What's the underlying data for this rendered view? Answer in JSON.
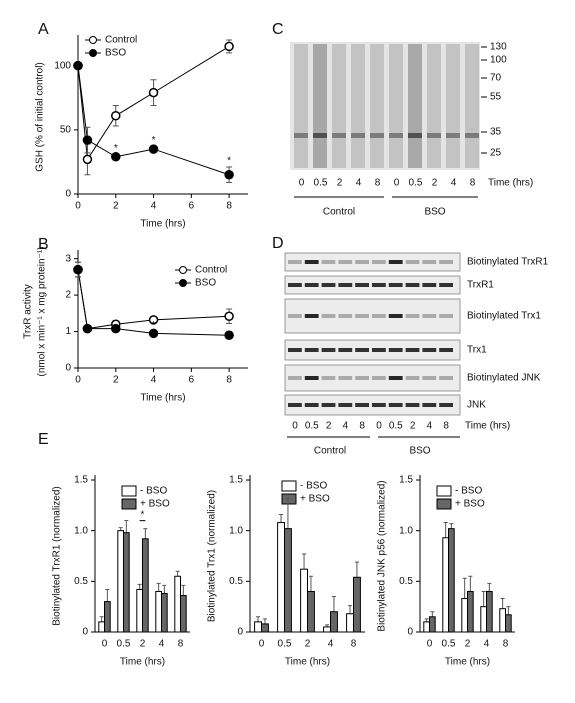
{
  "chart_data": [
    {
      "type": "line",
      "label": "A",
      "y_label": "GSH (% of initial control)",
      "x_label": "Time (hrs)",
      "x": [
        0,
        0.5,
        2,
        4,
        8
      ],
      "xlim": [
        0,
        9
      ],
      "xticks": [
        0,
        2,
        4,
        6,
        8
      ],
      "ylim": [
        0,
        120
      ],
      "yticks": [
        0,
        50,
        100
      ],
      "series": [
        {
          "name": "Control",
          "color": "#000000",
          "marker": "open",
          "values": [
            100,
            27,
            61,
            79,
            115
          ],
          "errors": [
            0,
            12,
            8,
            10,
            5
          ]
        },
        {
          "name": "BSO",
          "color": "#000000",
          "marker": "filled",
          "values": [
            100,
            42,
            29,
            35,
            15
          ],
          "errors": [
            0,
            10,
            2,
            2,
            6
          ],
          "significance": [
            null,
            null,
            "*",
            "*",
            "*"
          ]
        }
      ]
    },
    {
      "type": "line",
      "label": "B",
      "y_label": "TrxR activity",
      "y_label_2": "(nmol x min⁻¹ x mg protein⁻¹)",
      "x_label": "Time  (hrs)",
      "x": [
        0,
        0.5,
        2,
        4,
        8
      ],
      "xlim": [
        0,
        9
      ],
      "xticks": [
        0,
        2,
        4,
        6,
        8
      ],
      "ylim": [
        0,
        3.1
      ],
      "yticks": [
        0,
        1,
        2,
        3
      ],
      "series": [
        {
          "name": "Control",
          "color": "#000000",
          "marker": "open",
          "values": [
            2.7,
            1.08,
            1.2,
            1.32,
            1.42
          ],
          "errors": [
            0.2,
            0.05,
            0.1,
            0.05,
            0.2
          ]
        },
        {
          "name": "BSO",
          "color": "#000000",
          "marker": "filled",
          "values": [
            2.7,
            1.08,
            1.08,
            0.95,
            0.9
          ],
          "errors": [
            0.2,
            0.05,
            0.05,
            0.06,
            0.1
          ],
          "significance": [
            null,
            null,
            null,
            "*",
            null
          ]
        }
      ]
    },
    {
      "type": "bar",
      "label": "E",
      "y_label": "Biotinylated TrxR1 (normalized)",
      "x_label": "Time (hrs)",
      "categories": [
        "0",
        "0.5",
        "2",
        "4",
        "8"
      ],
      "ylim": [
        0,
        1.5
      ],
      "yticks": [
        0,
        0.5,
        {
          "value": 1,
          "label": "1.0"
        },
        1.5
      ],
      "significance": [
        null,
        null,
        "*",
        null,
        null
      ],
      "series": [
        {
          "name": "- BSO",
          "color": "#ffffff",
          "values": [
            0.1,
            1.0,
            0.42,
            0.4,
            0.55
          ],
          "errors": [
            0.05,
            0.03,
            0.05,
            0.08,
            0.05
          ]
        },
        {
          "name": "+ BSO",
          "color": "#666666",
          "values": [
            0.3,
            0.98,
            0.92,
            0.38,
            0.36
          ],
          "errors": [
            0.12,
            0.12,
            0.1,
            0.08,
            0.1
          ]
        }
      ]
    },
    {
      "type": "bar",
      "y_label": "Biotinylated Trx1 (normalized)",
      "x_label": "Time (hrs)",
      "categories": [
        "0",
        "0.5",
        "2",
        "4",
        "8"
      ],
      "ylim": [
        0,
        1.5
      ],
      "yticks": [
        0,
        0.5,
        {
          "value": 1,
          "label": "1.0"
        },
        1.5
      ],
      "series": [
        {
          "name": "- BSO",
          "color": "#ffffff",
          "values": [
            0.1,
            1.08,
            0.62,
            0.05,
            0.18
          ],
          "errors": [
            0.05,
            0.08,
            0.15,
            0.02,
            0.08
          ]
        },
        {
          "name": "+ BSO",
          "color": "#666666",
          "values": [
            0.08,
            1.02,
            0.4,
            0.2,
            0.54
          ],
          "errors": [
            0.05,
            0.3,
            0.15,
            0.15,
            0.15
          ]
        }
      ]
    },
    {
      "type": "bar",
      "y_label": "Biotinylated JNK p56 (normalized)",
      "x_label": "Time (hrs)",
      "categories": [
        "0",
        "0.5",
        "2",
        "4",
        "8"
      ],
      "ylim": [
        0,
        1.5
      ],
      "yticks": [
        0,
        0.5,
        {
          "value": 1,
          "label": "1.0"
        },
        1.5
      ],
      "series": [
        {
          "name": "- BSO",
          "color": "#ffffff",
          "values": [
            0.1,
            0.93,
            0.33,
            0.25,
            0.23
          ],
          "errors": [
            0.03,
            0.15,
            0.2,
            0.15,
            0.1
          ]
        },
        {
          "name": "+ BSO",
          "color": "#666666",
          "values": [
            0.15,
            1.02,
            0.4,
            0.4,
            0.17
          ],
          "errors": [
            0.05,
            0.05,
            0.15,
            0.08,
            0.08
          ]
        }
      ]
    }
  ],
  "blots": [
    {
      "label": "C",
      "lanes": [
        "0",
        "0.5",
        "2",
        "4",
        "8",
        "0",
        "0.5",
        "2",
        "4",
        "8"
      ],
      "time_label": "Time (hrs)",
      "groups": [
        "Control",
        "BSO"
      ],
      "markers": [
        "130",
        "100",
        "70",
        "55",
        "35",
        "25"
      ]
    },
    {
      "label": "D",
      "lanes": [
        "0",
        "0.5",
        "2",
        "4",
        "8",
        "0",
        "0.5",
        "2",
        "4",
        "8"
      ],
      "time_label": "Time (hrs)",
      "groups": [
        "Control",
        "BSO"
      ],
      "rows": [
        "Biotinylated TrxR1",
        "TrxR1",
        "Biotinylated Trx1",
        "Trx1",
        "Biotinylated JNK",
        "JNK"
      ]
    }
  ]
}
